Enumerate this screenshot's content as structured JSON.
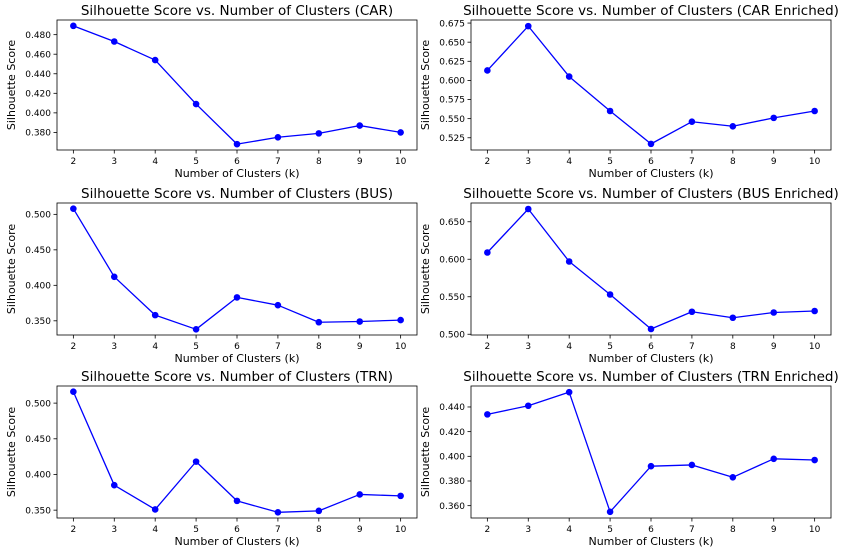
{
  "figure": {
    "layout": "3 rows x 2 columns",
    "line_color": "#0000ff",
    "marker_color": "#0000ff"
  },
  "chart_data": [
    {
      "type": "line",
      "title": "Silhouette Score vs. Number of Clusters (CAR)",
      "xlabel": "Number of Clusters (k)",
      "ylabel": "Silhouette Score",
      "x": [
        2,
        3,
        4,
        5,
        6,
        7,
        8,
        9,
        10
      ],
      "y": [
        0.489,
        0.473,
        0.454,
        0.409,
        0.368,
        0.375,
        0.379,
        0.387,
        0.38
      ],
      "xticks": [
        "2",
        "3",
        "4",
        "5",
        "6",
        "7",
        "8",
        "9",
        "10"
      ],
      "yticks": [
        "0.380",
        "0.400",
        "0.420",
        "0.440",
        "0.460",
        "0.480"
      ],
      "ylim": [
        0.362,
        0.495
      ],
      "grid": false,
      "marker": "circle"
    },
    {
      "type": "line",
      "title": "Silhouette Score vs. Number of Clusters (CAR Enriched)",
      "xlabel": "Number of Clusters (k)",
      "ylabel": "Silhouette Score",
      "x": [
        2,
        3,
        4,
        5,
        6,
        7,
        8,
        9,
        10
      ],
      "y": [
        0.613,
        0.671,
        0.605,
        0.56,
        0.517,
        0.546,
        0.54,
        0.551,
        0.56
      ],
      "xticks": [
        "2",
        "3",
        "4",
        "5",
        "6",
        "7",
        "8",
        "9",
        "10"
      ],
      "yticks": [
        "0.525",
        "0.550",
        "0.575",
        "0.600",
        "0.625",
        "0.650",
        "0.675"
      ],
      "ylim": [
        0.509,
        0.679
      ],
      "grid": false,
      "marker": "circle"
    },
    {
      "type": "line",
      "title": "Silhouette Score vs. Number of Clusters (BUS)",
      "xlabel": "Number of Clusters (k)",
      "ylabel": "Silhouette Score",
      "x": [
        2,
        3,
        4,
        5,
        6,
        7,
        8,
        9,
        10
      ],
      "y": [
        0.508,
        0.412,
        0.358,
        0.338,
        0.383,
        0.372,
        0.348,
        0.349,
        0.351
      ],
      "xticks": [
        "2",
        "3",
        "4",
        "5",
        "6",
        "7",
        "8",
        "9",
        "10"
      ],
      "yticks": [
        "0.350",
        "0.400",
        "0.450",
        "0.500"
      ],
      "ylim": [
        0.33,
        0.516
      ],
      "grid": false,
      "marker": "circle"
    },
    {
      "type": "line",
      "title": "Silhouette Score vs. Number of Clusters (BUS Enriched)",
      "xlabel": "Number of Clusters (k)",
      "ylabel": "Silhouette Score",
      "x": [
        2,
        3,
        4,
        5,
        6,
        7,
        8,
        9,
        10
      ],
      "y": [
        0.609,
        0.667,
        0.597,
        0.553,
        0.507,
        0.53,
        0.522,
        0.529,
        0.531
      ],
      "xticks": [
        "2",
        "3",
        "4",
        "5",
        "6",
        "7",
        "8",
        "9",
        "10"
      ],
      "yticks": [
        "0.500",
        "0.550",
        "0.600",
        "0.650"
      ],
      "ylim": [
        0.499,
        0.675
      ],
      "grid": false,
      "marker": "circle"
    },
    {
      "type": "line",
      "title": "Silhouette Score vs. Number of Clusters (TRN)",
      "xlabel": "Number of Clusters (k)",
      "ylabel": "Silhouette Score",
      "x": [
        2,
        3,
        4,
        5,
        6,
        7,
        8,
        9,
        10
      ],
      "y": [
        0.516,
        0.385,
        0.351,
        0.418,
        0.363,
        0.347,
        0.349,
        0.372,
        0.37
      ],
      "xticks": [
        "2",
        "3",
        "4",
        "5",
        "6",
        "7",
        "8",
        "9",
        "10"
      ],
      "yticks": [
        "0.350",
        "0.400",
        "0.450",
        "0.500"
      ],
      "ylim": [
        0.339,
        0.524
      ],
      "grid": false,
      "marker": "circle"
    },
    {
      "type": "line",
      "title": "Silhouette Score vs. Number of Clusters (TRN Enriched)",
      "xlabel": "Number of Clusters (k)",
      "ylabel": "Silhouette Score",
      "x": [
        2,
        3,
        4,
        5,
        6,
        7,
        8,
        9,
        10
      ],
      "y": [
        0.434,
        0.441,
        0.452,
        0.355,
        0.392,
        0.393,
        0.383,
        0.398,
        0.397
      ],
      "xticks": [
        "2",
        "3",
        "4",
        "5",
        "6",
        "7",
        "8",
        "9",
        "10"
      ],
      "yticks": [
        "0.360",
        "0.380",
        "0.400",
        "0.420",
        "0.440"
      ],
      "ylim": [
        0.35,
        0.457
      ],
      "grid": false,
      "marker": "circle"
    }
  ]
}
